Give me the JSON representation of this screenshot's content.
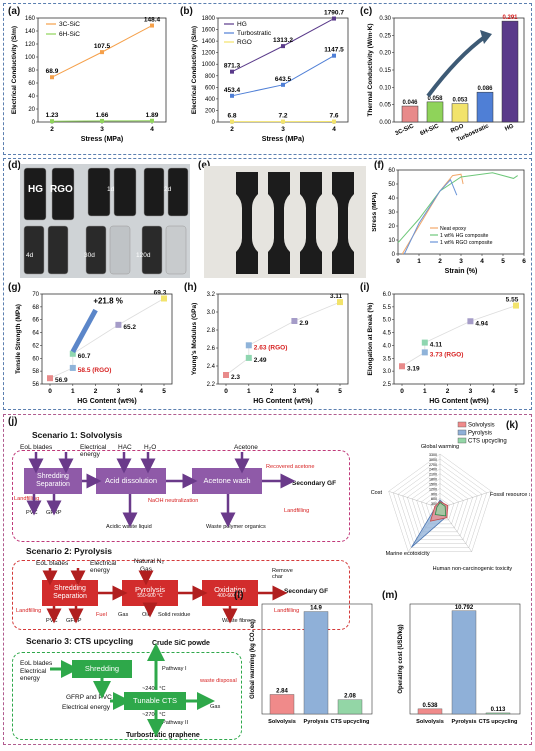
{
  "panel_labels": [
    "(a)",
    "(b)",
    "(c)",
    "(d)",
    "(e)",
    "(f)",
    "(g)",
    "(h)",
    "(i)",
    "(j)",
    "(k)",
    "(l)",
    "(m)"
  ],
  "colors": {
    "orange": "#f5a04a",
    "green": "#8fd35a",
    "purple": "#5a3a8a",
    "blue": "#4f7fd6",
    "yellow": "#f2e36b",
    "pink": "#e88a8a",
    "lightblue": "#8fb3d9",
    "lightgreen": "#8fd6b0",
    "solv": "#f08a8a",
    "pyro": "#8fb0d8",
    "cts": "#93d6a6"
  },
  "chart_data": [
    {
      "id": "a",
      "type": "line",
      "xlabel": "Stress (MPa)",
      "ylabel": "Electrical Conductivity (S/m)",
      "x": [
        2,
        3,
        4
      ],
      "ylim": [
        0,
        160
      ],
      "yticks": [
        0,
        20,
        40,
        60,
        80,
        100,
        120,
        140,
        160
      ],
      "series": [
        {
          "name": "3C-SiC",
          "values": [
            68.9,
            107.5,
            148.4
          ],
          "labels": [
            "68.9",
            "107.5",
            "148.4"
          ]
        },
        {
          "name": "6H-SiC",
          "values": [
            1.23,
            1.66,
            1.89
          ],
          "labels": [
            "1.23",
            "1.66",
            "1.89"
          ]
        }
      ]
    },
    {
      "id": "b",
      "type": "line",
      "xlabel": "Stress (MPa)",
      "ylabel": "Electrical Conductivity (S/m)",
      "x": [
        2,
        3,
        4
      ],
      "ylim": [
        0,
        1800
      ],
      "yticks": [
        0,
        200,
        400,
        600,
        800,
        1000,
        1200,
        1400,
        1600,
        1800
      ],
      "series": [
        {
          "name": "HG",
          "values": [
            871.3,
            1313.2,
            1790.7
          ],
          "labels": [
            "871.3",
            "1313.2",
            "1790.7"
          ]
        },
        {
          "name": "Turbostratic",
          "values": [
            453.4,
            643.5,
            1147.5
          ],
          "labels": [
            "453.4",
            "643.5",
            "1147.5"
          ]
        },
        {
          "name": "RGO",
          "values": [
            6.8,
            7.2,
            7.6
          ],
          "labels": [
            "6.8",
            "7.2",
            "7.6"
          ]
        }
      ]
    },
    {
      "id": "c",
      "type": "bar",
      "ylabel": "Thermal Conductivity (W/m·K)",
      "categories": [
        "3C-SiC",
        "6H-SiC",
        "RGO",
        "Turbostratic",
        "HG"
      ],
      "values": [
        0.046,
        0.058,
        0.053,
        0.086,
        0.291
      ],
      "ylim": [
        0,
        0.3
      ],
      "yticks": [
        "0.00",
        "0.05",
        "0.10",
        "0.15",
        "0.20",
        "0.25",
        "0.30"
      ]
    },
    {
      "id": "f",
      "type": "line",
      "xlabel": "Strain (%)",
      "ylabel": "Stress (MPa)",
      "xticks": [
        0,
        1,
        2,
        3,
        4,
        5,
        6
      ],
      "yticks": [
        0,
        10,
        20,
        30,
        40,
        50,
        60
      ],
      "series": [
        {
          "name": "Neat epoxy"
        },
        {
          "name": "1 wt% HG composite"
        },
        {
          "name": "1 wt% RGO composite"
        }
      ]
    },
    {
      "id": "g",
      "type": "scatter",
      "xlabel": "HG Content (wt%)",
      "ylabel": "Tensile Strength (MPa)",
      "x": [
        0,
        1,
        1,
        3,
        5
      ],
      "values": [
        56.9,
        58.5,
        60.7,
        65.2,
        69.3
      ],
      "labels": [
        "56.9",
        "58.5 (RGO)",
        "60.7",
        "65.2",
        "69.3"
      ],
      "annotation": "+21.8 %",
      "yticks": [
        56,
        58,
        60,
        62,
        64,
        66,
        68,
        70
      ],
      "xticks": [
        0,
        1,
        2,
        3,
        4,
        5
      ]
    },
    {
      "id": "h",
      "type": "scatter",
      "xlabel": "HG Content (wt%)",
      "ylabel": "Young's Modulus (GPa)",
      "x": [
        0,
        1,
        1,
        3,
        5
      ],
      "values": [
        2.3,
        2.49,
        2.63,
        2.9,
        3.11
      ],
      "labels": [
        "2.3",
        "2.49",
        "2.63 (RGO)",
        "2.9",
        "3.11"
      ],
      "yticks": [
        "2.2",
        "2.4",
        "2.6",
        "2.8",
        "3.0",
        "3.2"
      ],
      "xticks": [
        0,
        1,
        2,
        3,
        4,
        5
      ]
    },
    {
      "id": "i",
      "type": "scatter",
      "xlabel": "HG Content (wt%)",
      "ylabel": "Elongation at Break (%)",
      "x": [
        0,
        1,
        1,
        3,
        5
      ],
      "values": [
        3.19,
        3.73,
        4.11,
        4.94,
        5.55
      ],
      "labels": [
        "3.19",
        "3.73 (RGO)",
        "4.11",
        "4.94",
        "5.55"
      ],
      "yticks": [
        "2.5",
        "3.0",
        "3.5",
        "4.0",
        "4.5",
        "5.0",
        "5.5",
        "6.0"
      ],
      "xticks": [
        0,
        1,
        2,
        3,
        4,
        5
      ]
    },
    {
      "id": "k",
      "type": "radar",
      "axes": [
        "Global warming",
        "Fossil resource scarcity",
        "Human non-carcinogenic toxicity",
        "Marine ecotoxicity",
        "Cost"
      ],
      "rticks": [
        "0",
        "300",
        "600",
        "900",
        "1200",
        "1500",
        "1800",
        "2100",
        "2400",
        "2700",
        "3000",
        "3300"
      ],
      "series": [
        {
          "name": "Solvolysis"
        },
        {
          "name": "Pyrolysis"
        },
        {
          "name": "CTS upcycling"
        }
      ]
    },
    {
      "id": "l",
      "type": "bar",
      "ylabel": "Global warming (kg CO₂ eq)",
      "categories": [
        "Solvolysis",
        "Pyrolysis",
        "CTS upcycling"
      ],
      "values": [
        2.84,
        14.9,
        2.08
      ],
      "labels": [
        "2.84",
        "14.9",
        "2.08"
      ],
      "ylim": [
        0,
        16
      ]
    },
    {
      "id": "m",
      "type": "bar",
      "ylabel": "Operating cost (USD/kg)",
      "categories": [
        "Solvolysis",
        "Pyrolysis",
        "CTS upcycling"
      ],
      "values": [
        0.538,
        10.792,
        0.113
      ],
      "labels": [
        "0.538",
        "10.792",
        "0.113"
      ],
      "ylim": [
        0,
        11.5
      ]
    }
  ],
  "photos": {
    "d": {
      "hg": "HG",
      "rgo": "RGO",
      "t1": "1d",
      "t2": "2d",
      "t3": "4d",
      "t4": "30d",
      "t5": "120d"
    }
  },
  "scenario1": {
    "title": "Scenario 1: Solvolysis",
    "eol": "EoL blades",
    "elec": "Electrical energy",
    "hac": "HAC",
    "h2o": "H₂O",
    "acetone": "Acetone",
    "shred": "Shredding Separation",
    "acid": "Acid dissolution",
    "wash": "Acetone wash",
    "recovered": "Recovered acetone",
    "naoh": "NaOH neutralization",
    "out": "Secondary GF",
    "landfill1": "Landfilling",
    "landfill2": "Landfilling",
    "pvc": "PVC",
    "gfrp": "GFRP",
    "waste1": "Acidic waste liquid",
    "waste2": "Waste polymer organics"
  },
  "scenario2": {
    "title": "Scenario 2: Pyrolysis",
    "eol": "EoL blades",
    "elec": "Electrical energy",
    "n2": "Natural N₂",
    "gas": "Gas",
    "shred": "Shredding Separation",
    "pyro": "Pyrolysis",
    "pyro_t": "550-600 °C",
    "oxid": "Oxidation",
    "oxid_t": "400-600 °C",
    "remove": "Remove char",
    "out": "Secondary GF",
    "landfill1": "Landfilling",
    "landfill2": "Landfilling",
    "pvc": "PVC",
    "gfrp": "GFRP",
    "fuel": "Fuel",
    "gas2": "Gas",
    "oil": "Oil",
    "solid": "Solid residue",
    "fibre": "Waste fibre"
  },
  "scenario3": {
    "title": "Scenario 3:  CTS upcycling",
    "eol": "EoL blades",
    "elec": "Electrical energy",
    "shred": "Shredding",
    "crude": "Crude SiC powde",
    "p1": "Pathway I",
    "p2": "Pathway II",
    "t1": "~2400 °C",
    "cts": "Tunable CTS",
    "t2": "~2700 °C",
    "gfrp": "GFRP and PVC",
    "elec2": "Electrical energy",
    "waste": "waste disposal",
    "gas": "Gas",
    "product": "Turbostratic graphene"
  }
}
